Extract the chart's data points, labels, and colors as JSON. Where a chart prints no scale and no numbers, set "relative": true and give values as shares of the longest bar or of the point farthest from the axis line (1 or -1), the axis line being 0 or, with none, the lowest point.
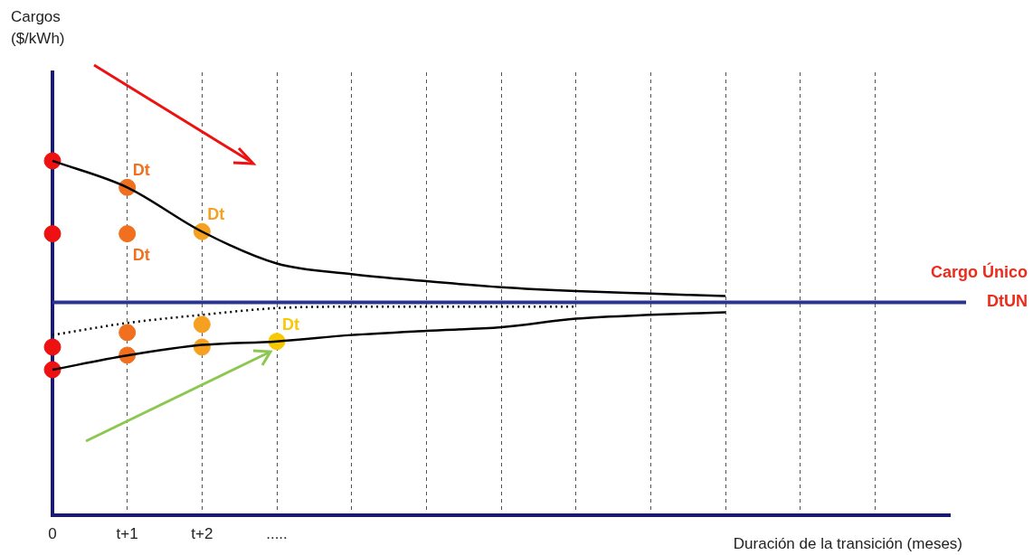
{
  "chart_data": {
    "type": "line",
    "relative": true,
    "xlabel": "Duración de la transición (meses)",
    "categories": [
      "0",
      "t+1",
      "t+2",
      ".....",
      null,
      null,
      null,
      null,
      null,
      null,
      null,
      null,
      null
    ],
    "grid": "x",
    "legend": false,
    "marker": "none",
    "series": [
      {
        "type": "line",
        "color": "#000000",
        "line_style": "solid",
        "values": [
          1.0,
          0.925,
          0.8,
          0.71,
          0.68,
          0.66,
          0.643,
          0.632,
          0.625,
          0.618,
          null,
          null,
          null
        ]
      },
      {
        "type": "line",
        "color": "#000000",
        "line_style": "solid",
        "values": [
          0.41,
          0.45,
          0.48,
          0.49,
          0.508,
          0.52,
          0.53,
          0.554,
          0.565,
          0.572,
          null,
          null,
          null
        ]
      },
      {
        "type": "line",
        "color": "#000000",
        "line_style": "dotted",
        "values": [
          0.508,
          0.542,
          0.565,
          0.584,
          0.588,
          0.588,
          0.588,
          0.588,
          null,
          null,
          null,
          null,
          null
        ]
      },
      {
        "type": "scatter",
        "color": "#ee1111",
        "marker": "circle",
        "x": [
          "0",
          "0",
          "0",
          "0"
        ],
        "values": [
          1.0,
          0.794,
          0.474,
          0.41
        ]
      },
      {
        "type": "scatter",
        "color": "#f07020",
        "marker": "circle",
        "x": [
          "t+1",
          "t+1",
          "t+1",
          "t+1"
        ],
        "values": [
          0.925,
          0.794,
          0.515,
          0.451
        ]
      },
      {
        "type": "scatter",
        "color": "#f5a020",
        "marker": "circle",
        "x": [
          "t+2",
          "t+2",
          "t+2"
        ],
        "values": [
          0.8,
          0.538,
          0.474
        ]
      },
      {
        "type": "scatter",
        "color": "#f8c800",
        "marker": "circle",
        "x": [
          "....."
        ],
        "values": [
          0.49
        ]
      }
    ],
    "ref_lines": [
      {
        "axis": "y",
        "value": 0.6,
        "label": "Cargo Único\nDtUN",
        "color": "#2b3590"
      }
    ],
    "annotations": [
      "Cargos\n($/kWh)",
      {
        "text": "Dt",
        "x": "t+1",
        "y": 0.925
      },
      {
        "text": "Dt",
        "x": "t+1",
        "y": 0.794
      },
      {
        "text": "Dt",
        "x": "t+2",
        "y": 0.8
      },
      {
        "text": "Dt",
        "x": ".....",
        "y": 0.49
      }
    ]
  }
}
